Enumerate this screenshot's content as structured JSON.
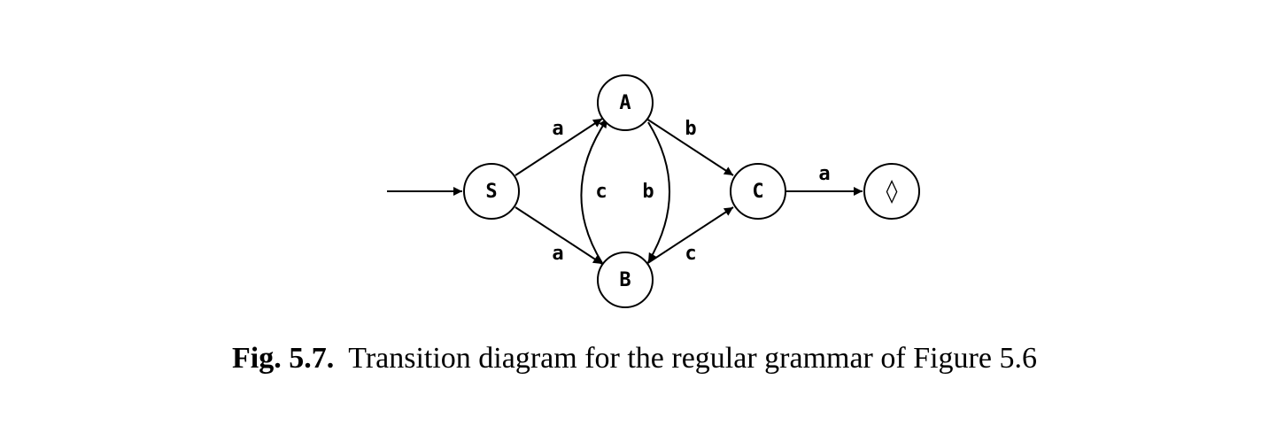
{
  "diagram": {
    "nodes": {
      "S": "S",
      "A": "A",
      "B": "B",
      "C": "C",
      "final": "◊"
    },
    "edges": {
      "s_to_a": "a",
      "s_to_b": "a",
      "a_to_c": "b",
      "a_to_b": "b",
      "b_to_a": "c",
      "b_to_c": "c",
      "c_to_final": "a"
    }
  },
  "caption": {
    "figure_number": "Fig. 5.7.",
    "text": "Transition diagram for the regular grammar of Figure 5.6"
  }
}
